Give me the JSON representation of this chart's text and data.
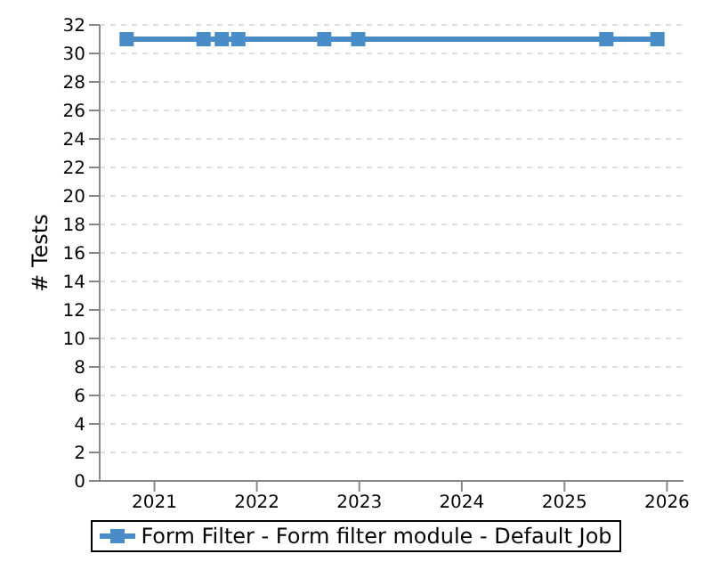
{
  "chart_data": {
    "type": "line",
    "ylabel": "# Tests",
    "x": [
      "2020-09-24",
      "2021-06-25",
      "2021-08-29",
      "2021-10-27",
      "2022-08-29",
      "2022-12-28",
      "2025-05-30",
      "2025-11-28"
    ],
    "series": [
      {
        "name": "Form Filter - Form filter module - Default Job",
        "color": "#4a8cc8",
        "values": [
          31,
          31,
          31,
          31,
          31,
          31,
          31,
          31
        ]
      }
    ],
    "xlim": [
      "2020-06-20",
      "2026-03-01"
    ],
    "xticks": [
      {
        "value": "2021",
        "label": "2021"
      },
      {
        "value": "2022",
        "label": "2022"
      },
      {
        "value": "2023",
        "label": "2023"
      },
      {
        "value": "2024",
        "label": "2024"
      },
      {
        "value": "2025",
        "label": "2025"
      },
      {
        "value": "2026",
        "label": "2026"
      }
    ],
    "ylim": [
      0,
      32
    ],
    "yticks": [
      0,
      2,
      4,
      6,
      8,
      10,
      12,
      14,
      16,
      18,
      20,
      22,
      24,
      26,
      28,
      30,
      32
    ],
    "grid": "y",
    "legend": "bottom",
    "marker": "square",
    "line_style": "solid"
  }
}
